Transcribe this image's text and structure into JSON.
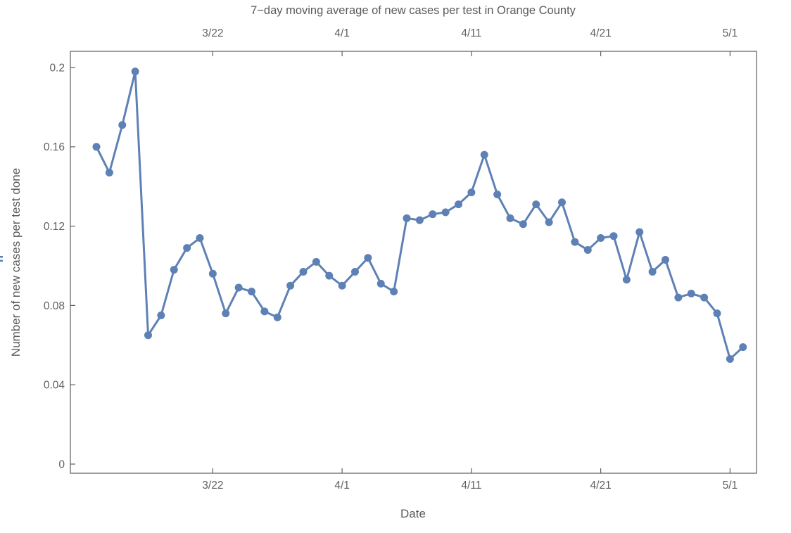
{
  "page": {
    "background": "#ffffff"
  },
  "chart_data": {
    "type": "line",
    "title": "7−day moving average of new cases per test in Orange County",
    "xlabel": "Date",
    "ylabel": "Number of new cases per test done",
    "legend": "none",
    "grid": false,
    "marker": "filled-circle",
    "series_color": "#5e81b5",
    "frame_color": "#5e5e5e",
    "label_color": "#5a5a5a",
    "tick_label_color": "#616161",
    "x": [
      "3/13",
      "3/14",
      "3/15",
      "3/16",
      "3/17",
      "3/18",
      "3/19",
      "3/20",
      "3/21",
      "3/22",
      "3/23",
      "3/24",
      "3/25",
      "3/26",
      "3/27",
      "3/28",
      "3/29",
      "3/30",
      "3/31",
      "4/1",
      "4/2",
      "4/3",
      "4/4",
      "4/5",
      "4/6",
      "4/7",
      "4/8",
      "4/9",
      "4/10",
      "4/11",
      "4/12",
      "4/13",
      "4/14",
      "4/15",
      "4/16",
      "4/17",
      "4/18",
      "4/19",
      "4/20",
      "4/21",
      "4/22",
      "4/23",
      "4/24",
      "4/25",
      "4/26",
      "4/27",
      "4/28",
      "4/29",
      "4/30",
      "5/1",
      "5/2"
    ],
    "values": [
      0.16,
      0.147,
      0.171,
      0.198,
      0.065,
      0.075,
      0.098,
      0.109,
      0.114,
      0.096,
      0.076,
      0.089,
      0.087,
      0.077,
      0.074,
      0.09,
      0.097,
      0.102,
      0.095,
      0.09,
      0.097,
      0.104,
      0.091,
      0.087,
      0.124,
      0.123,
      0.126,
      0.127,
      0.131,
      0.137,
      0.156,
      0.136,
      0.124,
      0.121,
      0.131,
      0.122,
      0.132,
      0.112,
      0.108,
      0.114,
      0.115,
      0.093,
      0.117,
      0.097,
      0.103,
      0.084,
      0.086,
      0.084,
      0.076,
      0.053,
      0.059
    ],
    "x_tick_labels": [
      "3/22",
      "4/1",
      "4/11",
      "4/21",
      "5/1"
    ],
    "x_tick_indices": [
      9,
      19,
      29,
      39,
      49
    ],
    "x_ticks_on_top": true,
    "y_tick_values": [
      0,
      0.04,
      0.08,
      0.12,
      0.16,
      0.2
    ],
    "y_tick_labels": [
      "0",
      "0.04",
      "0.08",
      "0.12",
      "0.16",
      "0.2"
    ],
    "ylim": [
      -0.005,
      0.208
    ],
    "xlim": [
      "3/11",
      "5/3"
    ]
  }
}
